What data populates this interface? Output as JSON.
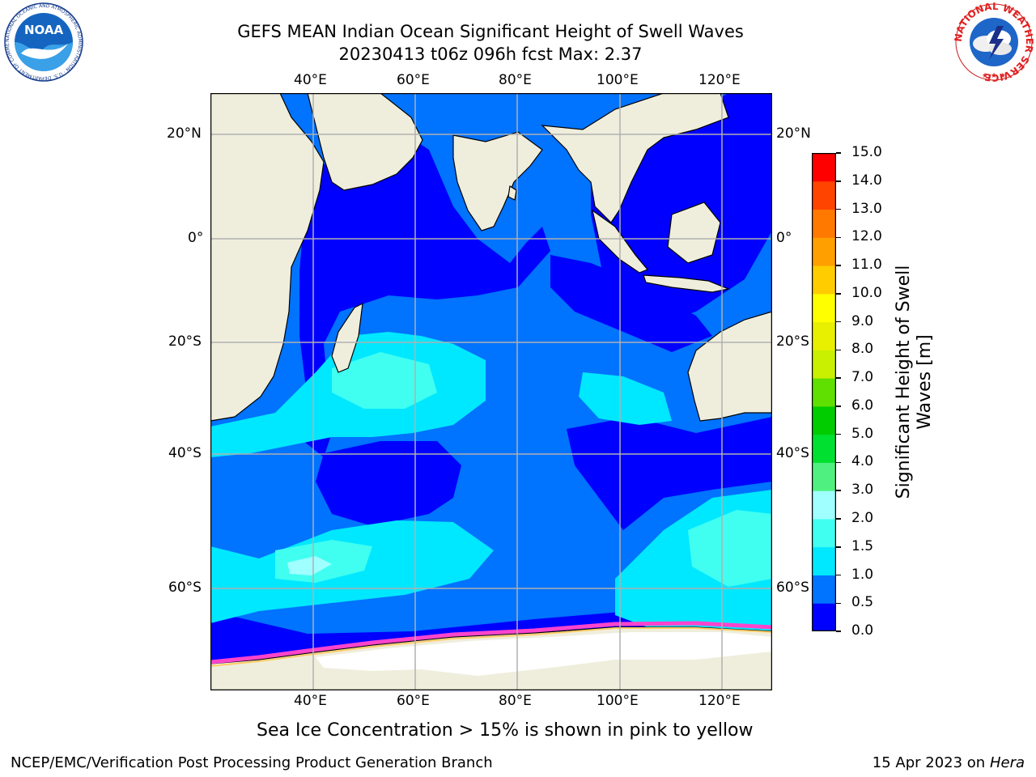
{
  "title": {
    "line1": "GEFS MEAN Indian Ocean Significant Height of Swell Waves",
    "line2": "20230413 t06z 096h fcst   Max: 2.37"
  },
  "map": {
    "lon_labels": [
      "40°E",
      "60°E",
      "80°E",
      "100°E",
      "120°E"
    ],
    "lat_labels": [
      "20°N",
      "0°",
      "20°S",
      "40°S",
      "60°S"
    ],
    "colors": {
      "land": "#efeedd",
      "ice": "#ffffff",
      "ice_edge": "#ff44cc",
      "grid": "#b0b0b0"
    }
  },
  "colorbar": {
    "title_line1": "Significant Height of Swell",
    "title_line2": "Waves [m]",
    "levels": [
      "0.0",
      "0.5",
      "1.0",
      "1.5",
      "2.0",
      "3.0",
      "4.0",
      "5.0",
      "6.0",
      "7.0",
      "8.0",
      "9.0",
      "10.0",
      "11.0",
      "12.0",
      "13.0",
      "14.0",
      "15.0"
    ],
    "colors": [
      "#0000ff",
      "#0073ff",
      "#00e8ff",
      "#40fff0",
      "#a0ffff",
      "#50f080",
      "#00e030",
      "#00cc00",
      "#60e000",
      "#c8f000",
      "#e8f000",
      "#ffff00",
      "#ffcc00",
      "#ffa000",
      "#ff7800",
      "#ff4400",
      "#ff0000"
    ]
  },
  "note": "Sea Ice Concentration > 15% is shown in pink to yellow",
  "footer": {
    "left": "NCEP/EMC/Verification Post Processing Product Generation Branch",
    "right_prefix": "15 Apr 2023 on ",
    "right_machine": "Hera"
  },
  "logos": {
    "noaa_text": "NOAA",
    "noaa_ring": "NATIONAL OCEANIC AND ATMOSPHERIC ADMINISTRATION · U.S. DEPARTMENT OF COMMERCE",
    "nws_ring": "NATIONAL WEATHER SERVICE"
  }
}
